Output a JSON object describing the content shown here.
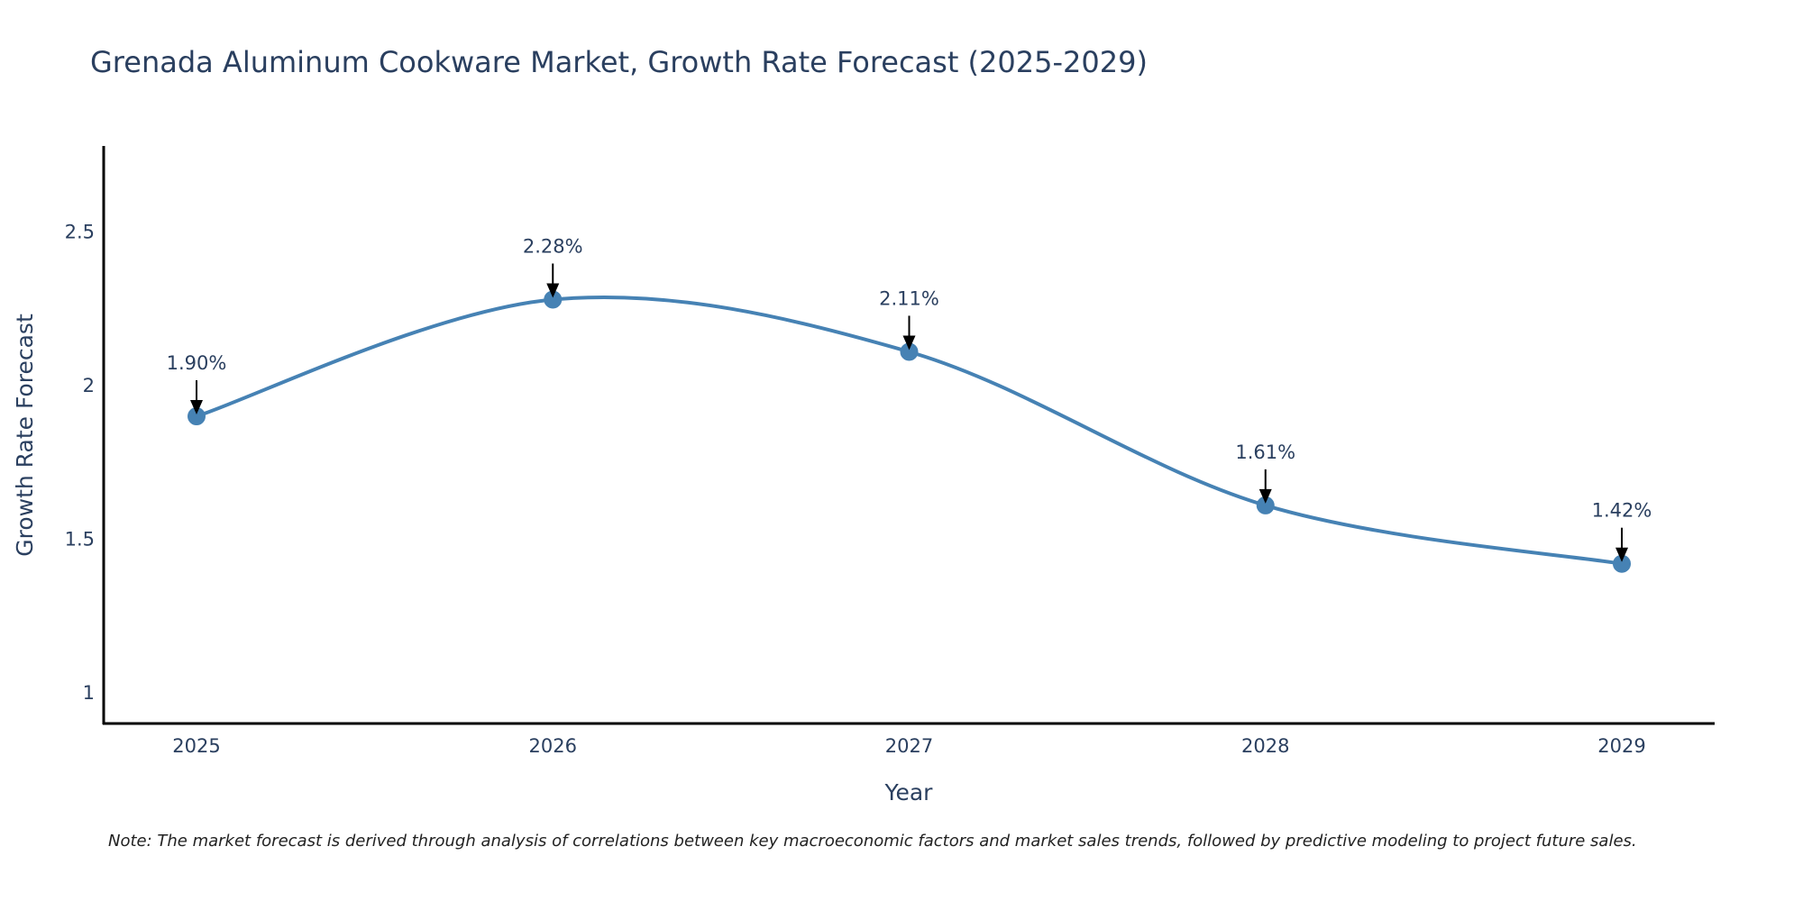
{
  "chart_data": {
    "type": "line",
    "title": "Grenada Aluminum Cookware Market, Growth Rate Forecast (2025-2029)",
    "xlabel": "Year",
    "ylabel": "Growth Rate Forecast",
    "categories": [
      "2025",
      "2026",
      "2027",
      "2028",
      "2029"
    ],
    "values": [
      1.9,
      2.28,
      2.11,
      1.61,
      1.42
    ],
    "data_labels": [
      "1.90%",
      "2.28%",
      "2.11%",
      "1.61%",
      "1.42%"
    ],
    "y_ticks": [
      1,
      1.5,
      2,
      2.5
    ],
    "y_tick_labels": [
      "1",
      "1.5",
      "2",
      "2.5"
    ],
    "ylim": [
      0.9,
      2.78
    ],
    "grid": false,
    "line_color": "#4682b4",
    "marker_color": "#4682b4",
    "note": "Note: The market forecast is derived through analysis of correlations between key macroeconomic factors and market sales trends, followed by predictive modeling to project future sales."
  }
}
